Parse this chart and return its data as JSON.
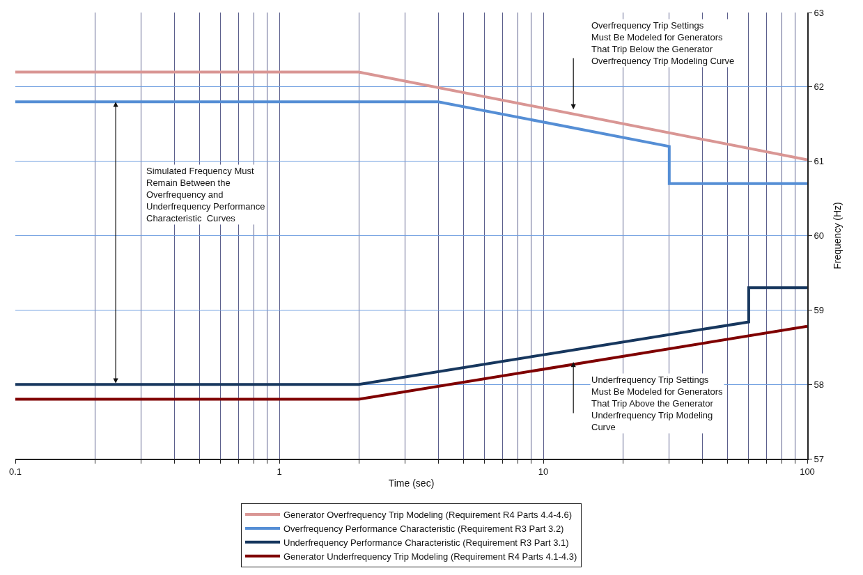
{
  "chart_data": {
    "type": "line",
    "xlabel": "Time (sec)",
    "ylabel": "Frequency (Hz)",
    "log": "x",
    "xlim": [
      0.1,
      100
    ],
    "ylim": [
      57,
      63
    ],
    "xticks": [
      0.1,
      {
        "value": 0.2,
        "label": null
      },
      {
        "value": 0.3,
        "label": null
      },
      {
        "value": 0.4,
        "label": null
      },
      {
        "value": 0.5,
        "label": null
      },
      {
        "value": 0.6,
        "label": null
      },
      {
        "value": 0.7,
        "label": null
      },
      {
        "value": 0.8,
        "label": null
      },
      {
        "value": 0.9,
        "label": null
      },
      1,
      {
        "value": 2,
        "label": null
      },
      {
        "value": 3,
        "label": null
      },
      {
        "value": 4,
        "label": null
      },
      {
        "value": 5,
        "label": null
      },
      {
        "value": 6,
        "label": null
      },
      {
        "value": 7,
        "label": null
      },
      {
        "value": 8,
        "label": null
      },
      {
        "value": 9,
        "label": null
      },
      10,
      {
        "value": 20,
        "label": null
      },
      {
        "value": 30,
        "label": null
      },
      {
        "value": 40,
        "label": null
      },
      {
        "value": 50,
        "label": null
      },
      {
        "value": 60,
        "label": null
      },
      {
        "value": 70,
        "label": null
      },
      {
        "value": 80,
        "label": null
      },
      {
        "value": 90,
        "label": null
      },
      100
    ],
    "yticks": [
      57,
      58,
      59,
      60,
      61,
      62,
      63
    ],
    "grid": true,
    "legend": "bottom",
    "line_style": "solid",
    "marker": "none",
    "series": [
      {
        "name": "Generator Overfrequency Trip Modeling (Requirement R4 Parts 4.4-4.6)",
        "color": "#d99694",
        "x": [
          0.1,
          2,
          100
        ],
        "values": [
          62.2,
          62.2,
          61.02
        ]
      },
      {
        "name": "Overfrequency Performance Characteristic (Requirement R3 Part 3.2)",
        "color": "#558ed5",
        "x": [
          0.1,
          4,
          30,
          30,
          100
        ],
        "values": [
          61.8,
          61.8,
          61.2,
          60.7,
          60.7
        ]
      },
      {
        "name": "Underfrequency Performance Characteristic (Requirement R3 Part 3.1)",
        "color": "#17375e",
        "x": [
          0.1,
          2,
          60,
          60,
          100
        ],
        "values": [
          58.0,
          58.0,
          58.84,
          59.3,
          59.3
        ]
      },
      {
        "name": "Generator Underfrequency Trip Modeling (Requirement R4 Parts 4.1-4.3)",
        "color": "#7f0000",
        "x": [
          0.1,
          2,
          100
        ],
        "values": [
          57.8,
          57.8,
          58.78
        ]
      }
    ],
    "annotations": [
      "Overfrequency Trip Settings\nMust Be Modeled for Generators\nThat Trip Below the Generator\nOverfrequency Trip Modeling Curve",
      "Simulated Frequency Must\nRemain Between the\nOverfrequency and\nUnderfrequency Performance\nCharacteristic  Curves",
      "Underfrequency Trip Settings\nMust Be Modeled for Generators\nThat Trip Above the Generator\nUnderfrequency Trip Modeling\nCurve"
    ]
  }
}
